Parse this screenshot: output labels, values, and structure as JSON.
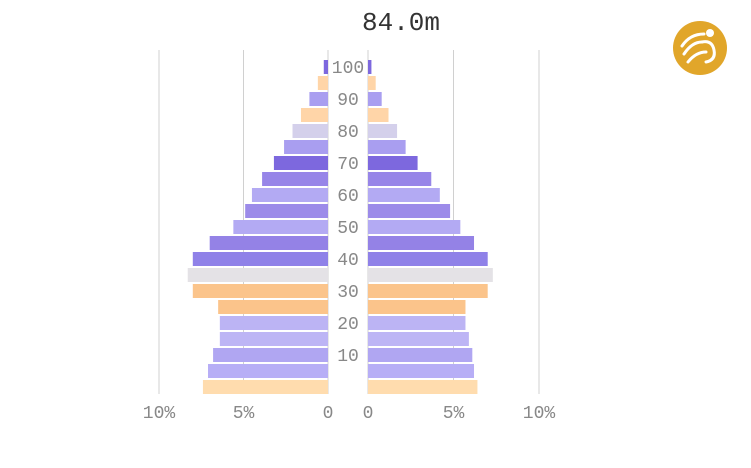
{
  "chart_data": {
    "type": "bar",
    "title": "84.0m",
    "age_labels": [
      "10",
      "20",
      "30",
      "40",
      "50",
      "60",
      "70",
      "80",
      "90",
      "100"
    ],
    "age_groups": [
      0,
      5,
      10,
      15,
      20,
      25,
      30,
      35,
      40,
      45,
      50,
      55,
      60,
      65,
      70,
      75,
      80,
      85,
      90,
      95,
      100
    ],
    "left": {
      "tick_labels": [
        "10%",
        "5%",
        "0"
      ],
      "ticks": [
        10,
        5,
        0
      ],
      "values": [
        7.4,
        7.1,
        6.8,
        6.4,
        6.4,
        6.5,
        8.0,
        8.3,
        8.0,
        7.0,
        5.6,
        4.9,
        4.5,
        3.9,
        3.2,
        2.6,
        2.1,
        1.6,
        1.1,
        0.6,
        0.25
      ]
    },
    "right": {
      "tick_labels": [
        "0",
        "5%",
        "10%"
      ],
      "ticks": [
        0,
        5,
        10
      ],
      "values": [
        6.4,
        6.2,
        6.1,
        5.9,
        5.7,
        5.7,
        7.0,
        7.3,
        7.0,
        6.2,
        5.4,
        4.8,
        4.2,
        3.7,
        2.9,
        2.2,
        1.7,
        1.2,
        0.8,
        0.45,
        0.2
      ]
    },
    "xlim": [
      0,
      10
    ],
    "colors": [
      "#ffdcae",
      "#b7aef6",
      "#b0a6f2",
      "#bdb5f5",
      "#bcb4f4",
      "#fbc48b",
      "#fbc48b",
      "#e4e2e6",
      "#8f81e8",
      "#9482e6",
      "#b3aaf3",
      "#9c8be9",
      "#b3aaf3",
      "#9785e8",
      "#7d68de",
      "#a99ef0",
      "#d4d0eb",
      "#ffd5a8",
      "#a99ef0",
      "#ffd5a8",
      "#7d68de"
    ]
  },
  "logo": {
    "icon": "dragon-logo-icon",
    "color": "#e1a62a"
  }
}
